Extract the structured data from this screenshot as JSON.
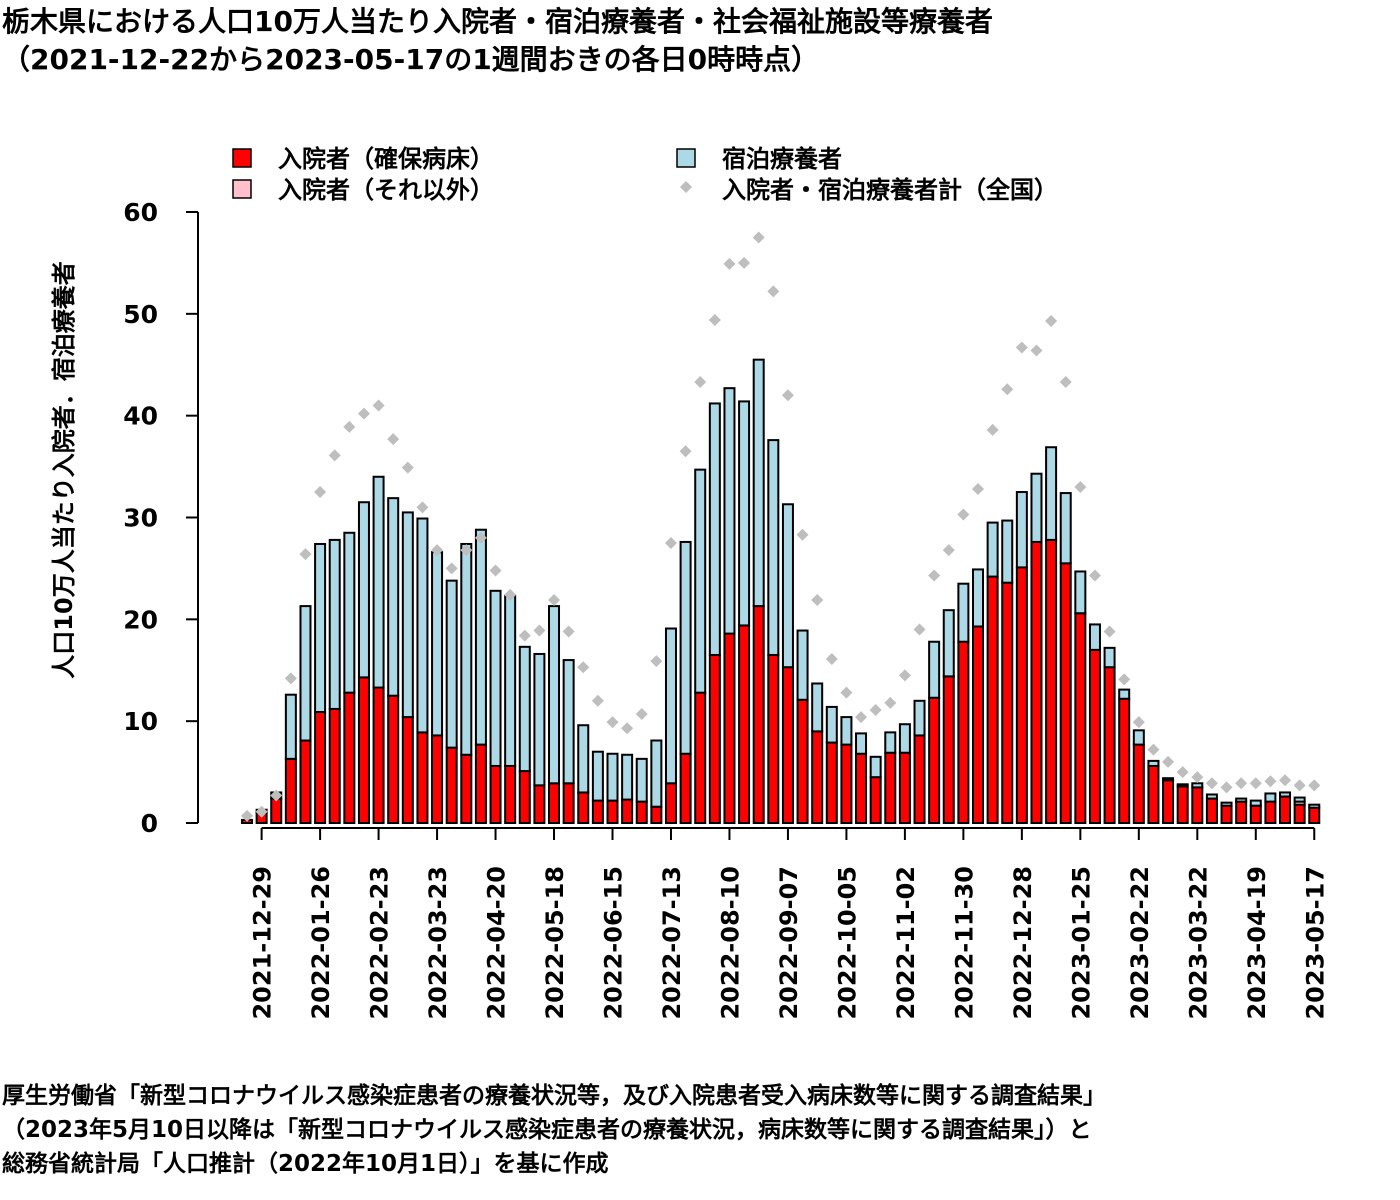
{
  "title": {
    "line1": "栃木県における人口10万人当たり入院者・宿泊療養者・社会福祉施設等療養者",
    "line2": "（2021-12-22から2023-05-17の1週間おきの各日0時時点）"
  },
  "footer": {
    "line1": "厚生労働省「新型コロナウイルス感染症患者の療養状況等，及び入院患者受入病床数等に関する調査結果」",
    "line2": "（2023年5月10日以降は「新型コロナウイルス感染症患者の療養状況，病床数等に関する調査結果」）と",
    "line3": "総務省統計局「人口推計（2022年10月1日）」を基に作成"
  },
  "chart_data": {
    "type": "bar",
    "stacked": true,
    "ylabel": "人口10万人当たり入院者．宿泊療養者",
    "xlabel": "",
    "ylim": [
      0,
      60
    ],
    "yticks": [
      "0",
      "10",
      "20",
      "30",
      "40",
      "50",
      "60"
    ],
    "xtick_labels": [
      "2021-12-29",
      "2022-01-26",
      "2022-02-23",
      "2022-03-23",
      "2022-04-20",
      "2022-05-18",
      "2022-06-15",
      "2022-07-13",
      "2022-08-10",
      "2022-09-07",
      "2022-10-05",
      "2022-11-02",
      "2022-11-30",
      "2022-12-28",
      "2023-01-25",
      "2023-02-22",
      "2023-03-22",
      "2023-04-19",
      "2023-05-17"
    ],
    "legend": {
      "placement": "top",
      "entries": [
        {
          "label": "入院者（確保病床）",
          "color": "#ff0000",
          "shape": "square"
        },
        {
          "label": "入院者（それ以外）",
          "color": "#ffc0cb",
          "shape": "square"
        },
        {
          "label": "宿泊療養者",
          "color": "#add8e6",
          "shape": "square"
        },
        {
          "label": "入院者・宿泊療養者計（全国）",
          "color": "#bebebe",
          "shape": "point"
        }
      ]
    },
    "x_start": "2021-12-22",
    "x_step_days": 7,
    "series": [
      {
        "name": "入院者（確保病床）",
        "color": "#ff0000",
        "values": [
          0.3,
          1.0,
          2.4,
          6.3,
          8.1,
          10.9,
          11.2,
          12.8,
          14.3,
          13.3,
          12.5,
          10.4,
          8.9,
          8.6,
          7.4,
          6.7,
          7.7,
          5.6,
          5.6,
          5.1,
          3.7,
          3.9,
          3.9,
          3.0,
          2.2,
          2.2,
          2.3,
          2.1,
          1.6,
          3.9,
          6.8,
          12.8,
          16.5,
          18.6,
          19.4,
          21.3,
          16.5,
          15.3,
          12.1,
          9.0,
          7.9,
          7.7,
          6.8,
          4.5,
          6.9,
          6.9,
          8.6,
          12.3,
          14.4,
          17.8,
          19.3,
          24.2,
          23.6,
          25.1,
          27.6,
          27.8,
          25.5,
          20.6,
          17.0,
          15.3,
          12.2,
          7.7,
          5.6,
          4.2,
          3.6,
          3.5,
          2.4,
          1.7,
          2.1,
          1.7,
          2.1,
          2.6,
          1.8,
          1.5
        ]
      },
      {
        "name": "入院者（それ以外）",
        "color": "#ffc0cb",
        "values": [
          0,
          0,
          0,
          0,
          0,
          0,
          0,
          0,
          0,
          0,
          0,
          0,
          0,
          0,
          0,
          0,
          0,
          0,
          0,
          0,
          0,
          0,
          0,
          0,
          0,
          0,
          0,
          0,
          0,
          0,
          0,
          0,
          0,
          0,
          0,
          0,
          0,
          0,
          0,
          0,
          0,
          0,
          0,
          0,
          0,
          0,
          0,
          0,
          0,
          0,
          0,
          0,
          0,
          0,
          0,
          0,
          0,
          0,
          0,
          0,
          0,
          0,
          0,
          0,
          0,
          0,
          0,
          0,
          0,
          0,
          0,
          0,
          0.3,
          0
        ]
      },
      {
        "name": "宿泊療養者",
        "color": "#add8e6",
        "values": [
          0,
          0.3,
          0.6,
          6.3,
          13.2,
          16.5,
          16.6,
          15.7,
          17.2,
          20.7,
          19.4,
          20.1,
          21.0,
          18.0,
          16.4,
          20.7,
          21.1,
          17.2,
          16.7,
          12.2,
          12.9,
          17.4,
          12.1,
          6.6,
          4.8,
          4.6,
          4.4,
          4.2,
          6.5,
          15.2,
          20.8,
          21.9,
          24.7,
          24.1,
          22.0,
          24.2,
          21.1,
          16.0,
          6.8,
          4.7,
          3.5,
          2.7,
          2.0,
          2.0,
          2.0,
          2.8,
          3.4,
          5.5,
          6.5,
          5.7,
          5.6,
          5.3,
          6.1,
          7.4,
          6.7,
          9.1,
          6.9,
          4.1,
          2.5,
          1.9,
          0.9,
          1.4,
          0.5,
          0.2,
          0.2,
          0.4,
          0.4,
          0.3,
          0.3,
          0.5,
          0.8,
          0.4,
          0.4,
          0.3
        ]
      },
      {
        "name": "入院者・宿泊療養者計（全国）",
        "color": "#bebebe",
        "type": "scatter",
        "values": [
          0.7,
          1.1,
          2.7,
          14.2,
          26.4,
          32.5,
          36.1,
          38.9,
          40.2,
          41.0,
          37.7,
          34.9,
          31.0,
          26.8,
          25.0,
          26.8,
          28.0,
          24.8,
          22.4,
          18.4,
          18.9,
          21.9,
          18.8,
          15.3,
          12.0,
          9.9,
          9.3,
          10.7,
          15.9,
          27.5,
          36.5,
          43.3,
          49.4,
          54.9,
          55.0,
          57.5,
          52.2,
          42.0,
          28.3,
          21.9,
          16.1,
          12.8,
          10.4,
          11.1,
          11.8,
          14.5,
          19.0,
          24.3,
          26.8,
          30.3,
          32.8,
          38.6,
          42.6,
          46.7,
          46.4,
          49.3,
          43.3,
          33.0,
          24.3,
          18.8,
          14.1,
          9.9,
          7.2,
          6.0,
          5.0,
          4.5,
          3.9,
          3.5,
          3.9,
          3.9,
          4.1,
          4.2,
          3.7,
          3.7
        ]
      }
    ]
  }
}
